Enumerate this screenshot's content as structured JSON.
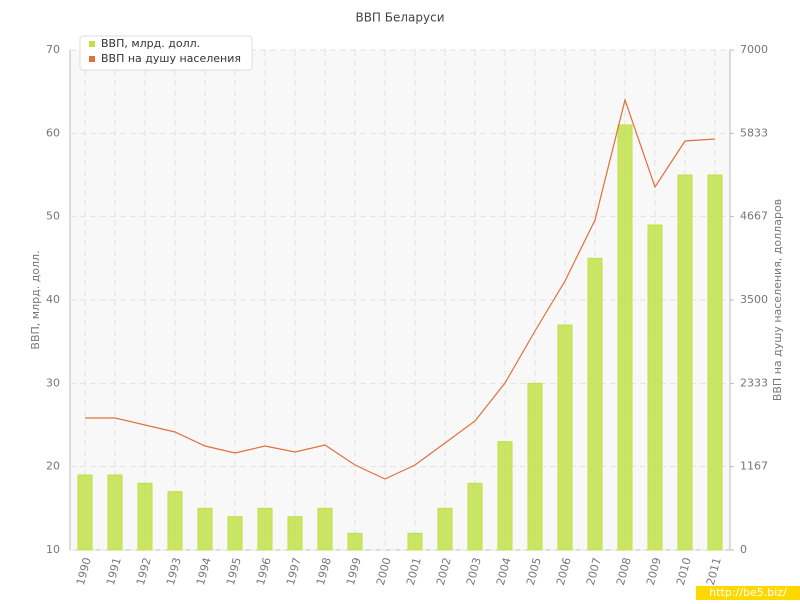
{
  "chart_data": {
    "type": "bar-line",
    "title": "ВВП Беларуси",
    "categories": [
      "1990",
      "1991",
      "1992",
      "1993",
      "1994",
      "1995",
      "1996",
      "1997",
      "1998",
      "1999",
      "2000",
      "2001",
      "2002",
      "2003",
      "2004",
      "2005",
      "2006",
      "2007",
      "2008",
      "2009",
      "2010",
      "2011"
    ],
    "series": [
      {
        "name": "ВВП, млрд. долл.",
        "color": "#c2e04a",
        "type": "bar",
        "values": [
          19,
          19,
          18,
          17,
          15,
          14,
          15,
          14,
          15,
          12,
          10,
          12,
          15,
          18,
          23,
          30,
          37,
          45,
          61,
          49,
          55,
          55
        ]
      },
      {
        "name": "ВВП на душу населения",
        "color": "#e0703c",
        "type": "line",
        "axis": "y2",
        "values": [
          1848,
          1848,
          1750,
          1652,
          1456,
          1358,
          1456,
          1372,
          1470,
          1190,
          994,
          1190,
          1498,
          1806,
          2338,
          3066,
          3766,
          4620,
          6300,
          5082,
          5726,
          5754
        ]
      }
    ],
    "ylabel": "ВВП, млрд. долл.",
    "y2label": "ВВП на душу населения, долларов",
    "ylim": [
      10,
      70
    ],
    "yticks": [
      10,
      20,
      30,
      40,
      50,
      60,
      70
    ],
    "y2lim": [
      0,
      7000
    ],
    "y2ticks": [
      0,
      1167,
      2333,
      3500,
      4667,
      5833,
      7000
    ],
    "grid": true,
    "legend": "top-left",
    "watermark": "http://be5.biz/"
  }
}
